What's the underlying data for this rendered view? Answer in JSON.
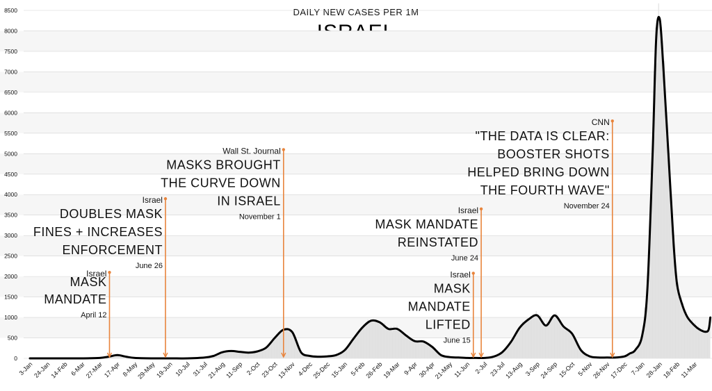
{
  "chart_data": {
    "type": "area",
    "subtitle": "DAILY NEW CASES PER 1M",
    "title": "ISRAEL",
    "xlabel": "",
    "ylabel": "",
    "y_ticks": [
      0,
      500,
      1000,
      1500,
      2000,
      2500,
      3000,
      3500,
      4000,
      4500,
      5000,
      5500,
      6000,
      6500,
      7000,
      7500,
      8000,
      8500
    ],
    "ylim": [
      0,
      8500
    ],
    "grid": "horizontal",
    "x_tick_labels": [
      "3-Jan",
      "24-Jan",
      "14-Feb",
      "6-Mar",
      "27-Mar",
      "17-Apr",
      "8-May",
      "29-May",
      "19-Jun",
      "10-Jul",
      "31-Jul",
      "21-Aug",
      "11-Sep",
      "2-Oct",
      "23-Oct",
      "13-Nov",
      "4-Dec",
      "25-Dec",
      "15-Jan",
      "5-Feb",
      "26-Feb",
      "19-Mar",
      "9-Apr",
      "30-Apr",
      "21-May",
      "11-Jun",
      "2-Jul",
      "23-Jul",
      "13-Aug",
      "3-Sep",
      "24-Sep",
      "15-Oct",
      "5-Nov",
      "26-Nov",
      "17-Dec",
      "7-Jan",
      "28-Jan",
      "18-Feb",
      "11-Mar"
    ],
    "series": [
      {
        "x": [
          0,
          2,
          4,
          5,
          6,
          7,
          8,
          9,
          10,
          11,
          12,
          13,
          14,
          14.5,
          15,
          16,
          17,
          18,
          18.5,
          19,
          19.5,
          20,
          21,
          21.5,
          22,
          23,
          24,
          25,
          26,
          27,
          28,
          29,
          30,
          31,
          32,
          33,
          34,
          35,
          35.6,
          36,
          36.4,
          36.8,
          37.3,
          37.7,
          38,
          38.3,
          38.6,
          38.85
        ],
        "y": [
          0,
          0,
          0,
          30,
          80,
          20,
          0,
          0,
          10,
          40,
          170,
          180,
          130,
          170,
          240,
          470,
          700,
          620,
          150,
          50,
          30,
          70,
          200,
          450,
          750,
          900,
          730,
          500,
          400,
          50,
          10,
          0,
          0,
          20,
          200,
          550,
          900,
          1050,
          800,
          1000,
          760,
          450,
          200,
          80,
          50,
          60,
          60,
          60
        ],
        "comment_free": true
      }
    ],
    "smoothed_series": {
      "x": [
        0,
        1,
        2,
        3,
        4,
        4.5,
        5,
        5.5,
        6,
        7,
        8,
        9,
        10,
        10.5,
        11,
        11.5,
        12,
        12.5,
        13,
        13.5,
        14,
        14.5,
        15,
        15.5,
        16,
        16.5,
        17,
        17.5,
        18,
        18.5,
        19,
        19.5,
        20,
        20.5,
        21,
        21.5,
        22,
        22.5,
        23,
        23.5,
        24,
        24.5,
        25,
        25.5,
        26,
        26.5,
        27,
        27.5,
        28,
        28.5,
        29,
        29.5,
        30,
        30.5,
        31,
        31.5,
        32,
        32.5,
        33,
        33.5,
        34,
        34.3,
        34.6,
        35,
        35.3,
        35.6,
        35.8,
        36,
        36.2,
        36.5,
        36.8,
        37,
        37.3,
        37.6,
        38,
        38.3,
        38.6,
        38.8,
        38.9
      ],
      "y": [
        0,
        0,
        0,
        0,
        10,
        40,
        80,
        40,
        10,
        0,
        0,
        0,
        20,
        60,
        150,
        180,
        160,
        140,
        170,
        260,
        500,
        700,
        640,
        150,
        60,
        40,
        50,
        80,
        200,
        480,
        750,
        920,
        880,
        720,
        720,
        560,
        420,
        410,
        280,
        80,
        30,
        20,
        10,
        10,
        10,
        40,
        150,
        400,
        750,
        950,
        1050,
        800,
        1050,
        780,
        600,
        200,
        50,
        20,
        20,
        20,
        50,
        120,
        200,
        550,
        1700,
        5000,
        7800,
        8300,
        7200,
        5000,
        2800,
        1800,
        1300,
        1000,
        800,
        700,
        650,
        700,
        1000
      ]
    }
  },
  "annotations": [
    {
      "source": "Israel",
      "headline_lines": [
        "MASK",
        "MANDATE"
      ],
      "date": "April 12",
      "category_index": 4.55,
      "top_value": 2100
    },
    {
      "source": "Israel",
      "headline_lines": [
        "DOUBLES MASK",
        "FINES + INCREASES",
        "ENFORCEMENT"
      ],
      "date": "June 26",
      "category_index": 7.75,
      "top_value": 3900
    },
    {
      "source": "Wall St. Journal",
      "headline_lines": [
        "MASKS BROUGHT",
        "THE CURVE DOWN",
        "IN ISRAEL"
      ],
      "date": "November 1",
      "category_index": 14.5,
      "top_value": 5100
    },
    {
      "source": "Israel",
      "headline_lines": [
        "MASK MANDATE",
        "REINSTATED"
      ],
      "date": "June 24",
      "category_index": 25.8,
      "top_value": 3650
    },
    {
      "source": "Israel",
      "headline_lines": [
        "MASK",
        "MANDATE",
        "LIFTED"
      ],
      "date": "June 15",
      "category_index": 25.35,
      "top_value": 2080
    },
    {
      "source": "CNN",
      "headline_lines": [
        "\"THE DATA IS CLEAR:",
        "BOOSTER SHOTS",
        "HELPED BRING DOWN",
        "THE FOURTH WAVE\""
      ],
      "date": "November 24",
      "category_index": 33.3,
      "top_value": 5800
    }
  ],
  "colors": {
    "line": "#000000",
    "area_fill": "#e6e6e6",
    "annotation": "#e8843c",
    "grid": "#d4d4d4",
    "band": "#f6f6f6",
    "text": "#111111"
  }
}
